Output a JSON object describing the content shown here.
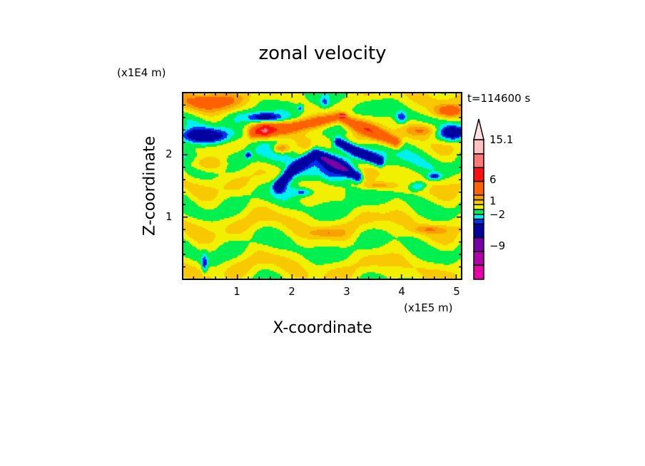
{
  "chart_data": {
    "type": "heatmap",
    "title": "zonal velocity",
    "xlabel": "X-coordinate",
    "ylabel": "Z-coordinate",
    "x_unit": "(x1E5 m)",
    "y_unit": "(x1E4 m)",
    "annotation": "t=114600 s",
    "xlim": [
      0,
      5.1
    ],
    "ylim": [
      0,
      3
    ],
    "x_ticks": [
      "1",
      "2",
      "3",
      "4",
      "5"
    ],
    "x_tick_values": [
      1,
      2,
      3,
      4,
      5
    ],
    "y_ticks": [
      "1",
      "2"
    ],
    "y_tick_values": [
      1,
      2
    ],
    "colorbar": {
      "levels": [
        -15.1,
        -12,
        -9,
        -6,
        -3,
        -2,
        -1,
        0,
        1,
        2,
        3,
        6,
        9,
        12,
        15.1
      ],
      "colors": [
        "#e800a8",
        "#b000a8",
        "#7800a8",
        "#0000a0",
        "#0030f0",
        "#00f0f0",
        "#00f050",
        "#f0f000",
        "#f8c800",
        "#f8a000",
        "#ff6000",
        "#ff1010",
        "#ff7878",
        "#ffc0c0"
      ],
      "overflow_color": "#ffe0e0",
      "labels": [
        "15.1",
        "6",
        "1",
        "-2",
        "-9"
      ],
      "label_values": [
        15.1,
        6,
        1,
        -2,
        -9
      ]
    }
  }
}
